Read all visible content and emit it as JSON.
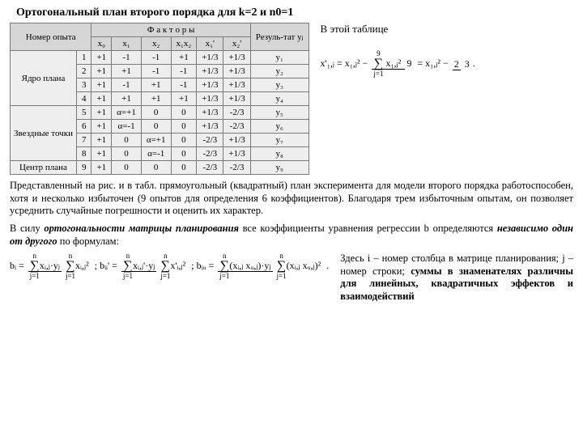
{
  "title": "Ортогональный план второго порядка для k=2 и n0=1",
  "side_caption": "В этой таблице",
  "side_formula_left": "x'₁,ⱼ = x₁,ⱼ² −",
  "side_formula_sum_top": "9",
  "side_formula_sum_bot": "j=1",
  "side_formula_sum_body": "x₁,ⱼ²",
  "side_formula_div": "9",
  "side_formula_right": "= x₁,ⱼ² − ",
  "side_formula_frac_num": "2",
  "side_formula_frac_den": "3",
  "table": {
    "col_group_left": "Номер опыта",
    "col_group_mid": "Ф а к т о р ы",
    "col_group_right": "Резуль-тат yⱼ",
    "factor_cols": [
      "x₀",
      "x₁",
      "x₂",
      "x₁x₂",
      "x₁'",
      "x₂'"
    ],
    "groups": [
      {
        "label": "Ядро плана",
        "rows": [
          {
            "n": "1",
            "cells": [
              "+1",
              "-1",
              "-1",
              "+1",
              "+1/3",
              "+1/3"
            ],
            "y": "y₁"
          },
          {
            "n": "2",
            "cells": [
              "+1",
              "+1",
              "-1",
              "-1",
              "+1/3",
              "+1/3"
            ],
            "y": "y₂"
          },
          {
            "n": "3",
            "cells": [
              "+1",
              "-1",
              "+1",
              "-1",
              "+1/3",
              "+1/3"
            ],
            "y": "y₃"
          },
          {
            "n": "4",
            "cells": [
              "+1",
              "+1",
              "+1",
              "+1",
              "+1/3",
              "+1/3"
            ],
            "y": "y₄"
          }
        ]
      },
      {
        "label": "Звездные точки",
        "rows": [
          {
            "n": "5",
            "cells": [
              "+1",
              "α=+1",
              "0",
              "0",
              "+1/3",
              "-2/3"
            ],
            "y": "y₅"
          },
          {
            "n": "6",
            "cells": [
              "+1",
              "α=-1",
              "0",
              "0",
              "+1/3",
              "-2/3"
            ],
            "y": "y₆"
          },
          {
            "n": "7",
            "cells": [
              "+1",
              "0",
              "α=+1",
              "0",
              "-2/3",
              "+1/3"
            ],
            "y": "y₇"
          },
          {
            "n": "8",
            "cells": [
              "+1",
              "0",
              "α=-1",
              "0",
              "-2/3",
              "+1/3"
            ],
            "y": "y₈"
          }
        ]
      },
      {
        "label": "Центр плана",
        "rows": [
          {
            "n": "9",
            "cells": [
              "+1",
              "0",
              "0",
              "0",
              "-2/3",
              "-2/3"
            ],
            "y": "y₉"
          }
        ]
      }
    ]
  },
  "para1": "Представленный на рис. и в табл. прямоугольный (квадратный) план эксперимента для модели второго порядка работоспособен, хотя и несколько избыточен (9 опытов для определения 6 коэффициентов). Благодаря трем избыточным опытам, он позволяет усреднить случайные погрешности и оценить их характер.",
  "para2_pre": "В силу ",
  "para2_em1": "ортогональности матрицы планирования",
  "para2_mid": " все коэффициенты уравнения регрессии b определяются ",
  "para2_em2": "независимо один от другого",
  "para2_post": " по формулам:",
  "bi_label": "bᵢ =",
  "bii_label": "bᵢᵢ' =",
  "biu_label": "bᵢᵤ =",
  "sum_n": "n",
  "sum_j1": "j=1",
  "f1_num": "xᵢ,ⱼ·yⱼ",
  "f1_den": "xᵢ,ⱼ²",
  "f2_num": "xᵢ,ⱼ'·yⱼ",
  "f2_den": "x'ᵢ,ⱼ²",
  "f3_num": "(xᵢ,ⱼ xᵤ,ⱼ)·yⱼ",
  "f3_den": "(xᵢ,ⱼ xᵤ,ⱼ)²",
  "sep": " ; ",
  "dot": " .",
  "bottom_text_pre": "Здесь i – номер столбца в матрице планирования; j – номер строки; ",
  "bottom_text_bold": "суммы в знаменателях различны для линейных, квадратичных эффектов и взаимодействий"
}
